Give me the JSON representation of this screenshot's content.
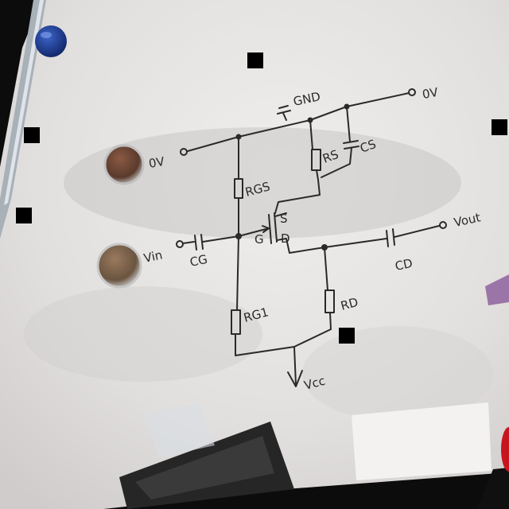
{
  "labels": {
    "gnd": "GND",
    "v0_top": "0V",
    "v0_left": "0V",
    "vin": "Vin",
    "vout": "Vout",
    "vcc": "Vcc",
    "rgs": "RGS",
    "rs": "RS",
    "cs": "CS",
    "cg": "CG",
    "rg1": "RG1",
    "rd": "RD",
    "cd": "CD",
    "terminal_s": "S",
    "terminal_g": "G",
    "terminal_d": "D"
  },
  "colors": {
    "board": "#e6e4e2",
    "ink": "#2a2a2a",
    "magnet": "#1e3c8c",
    "frame": "#a8b0b8"
  }
}
